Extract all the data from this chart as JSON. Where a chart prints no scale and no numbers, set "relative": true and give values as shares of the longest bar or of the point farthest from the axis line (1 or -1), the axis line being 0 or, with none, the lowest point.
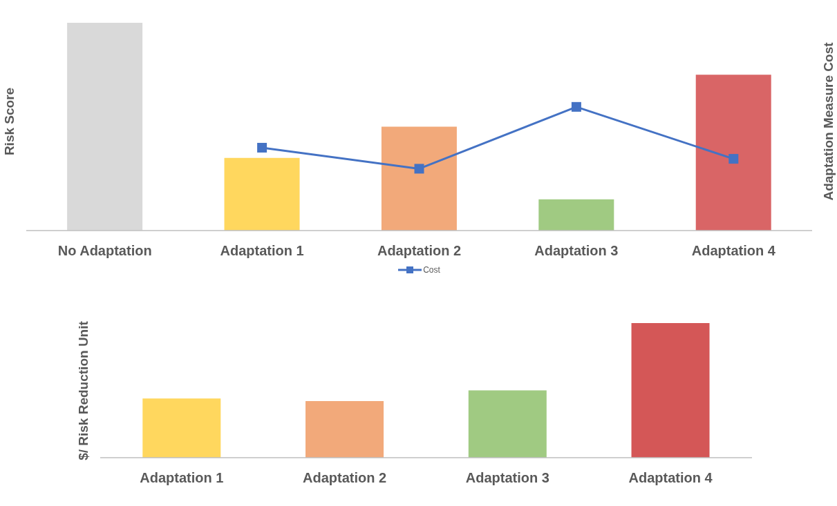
{
  "chart_data": [
    {
      "type": "bar",
      "relative": true,
      "ylabel": "Risk Score",
      "y2label": "Adaptation Measure Cost",
      "categories": [
        "No Adaptation",
        "Adaptation 1",
        "Adaptation 2",
        "Adaptation 3",
        "Adaptation 4"
      ],
      "grid": false,
      "legend": "bottom",
      "marker": "square",
      "line_style": "solid",
      "series": [
        {
          "colors": [
            "#d9d9d9",
            "#ffd75e",
            "#f2a97a",
            "#a0ca82",
            "#d96566"
          ],
          "values": [
            1,
            0.35,
            0.5,
            0.15,
            0.75
          ]
        },
        {
          "type": "line",
          "name": "Cost",
          "color": "#4472c4",
          "axis": "y2",
          "values": [
            null,
            0.67,
            0.5,
            1,
            0.58
          ]
        }
      ]
    },
    {
      "type": "bar",
      "relative": true,
      "ylabel": "$/ Risk Reduction Unit",
      "categories": [
        "Adaptation 1",
        "Adaptation 2",
        "Adaptation 3",
        "Adaptation 4"
      ],
      "grid": false,
      "series": [
        {
          "colors": [
            "#ffd75e",
            "#f2a97a",
            "#a0ca82",
            "#d45757"
          ],
          "values": [
            0.44,
            0.42,
            0.5,
            1
          ]
        }
      ]
    }
  ]
}
